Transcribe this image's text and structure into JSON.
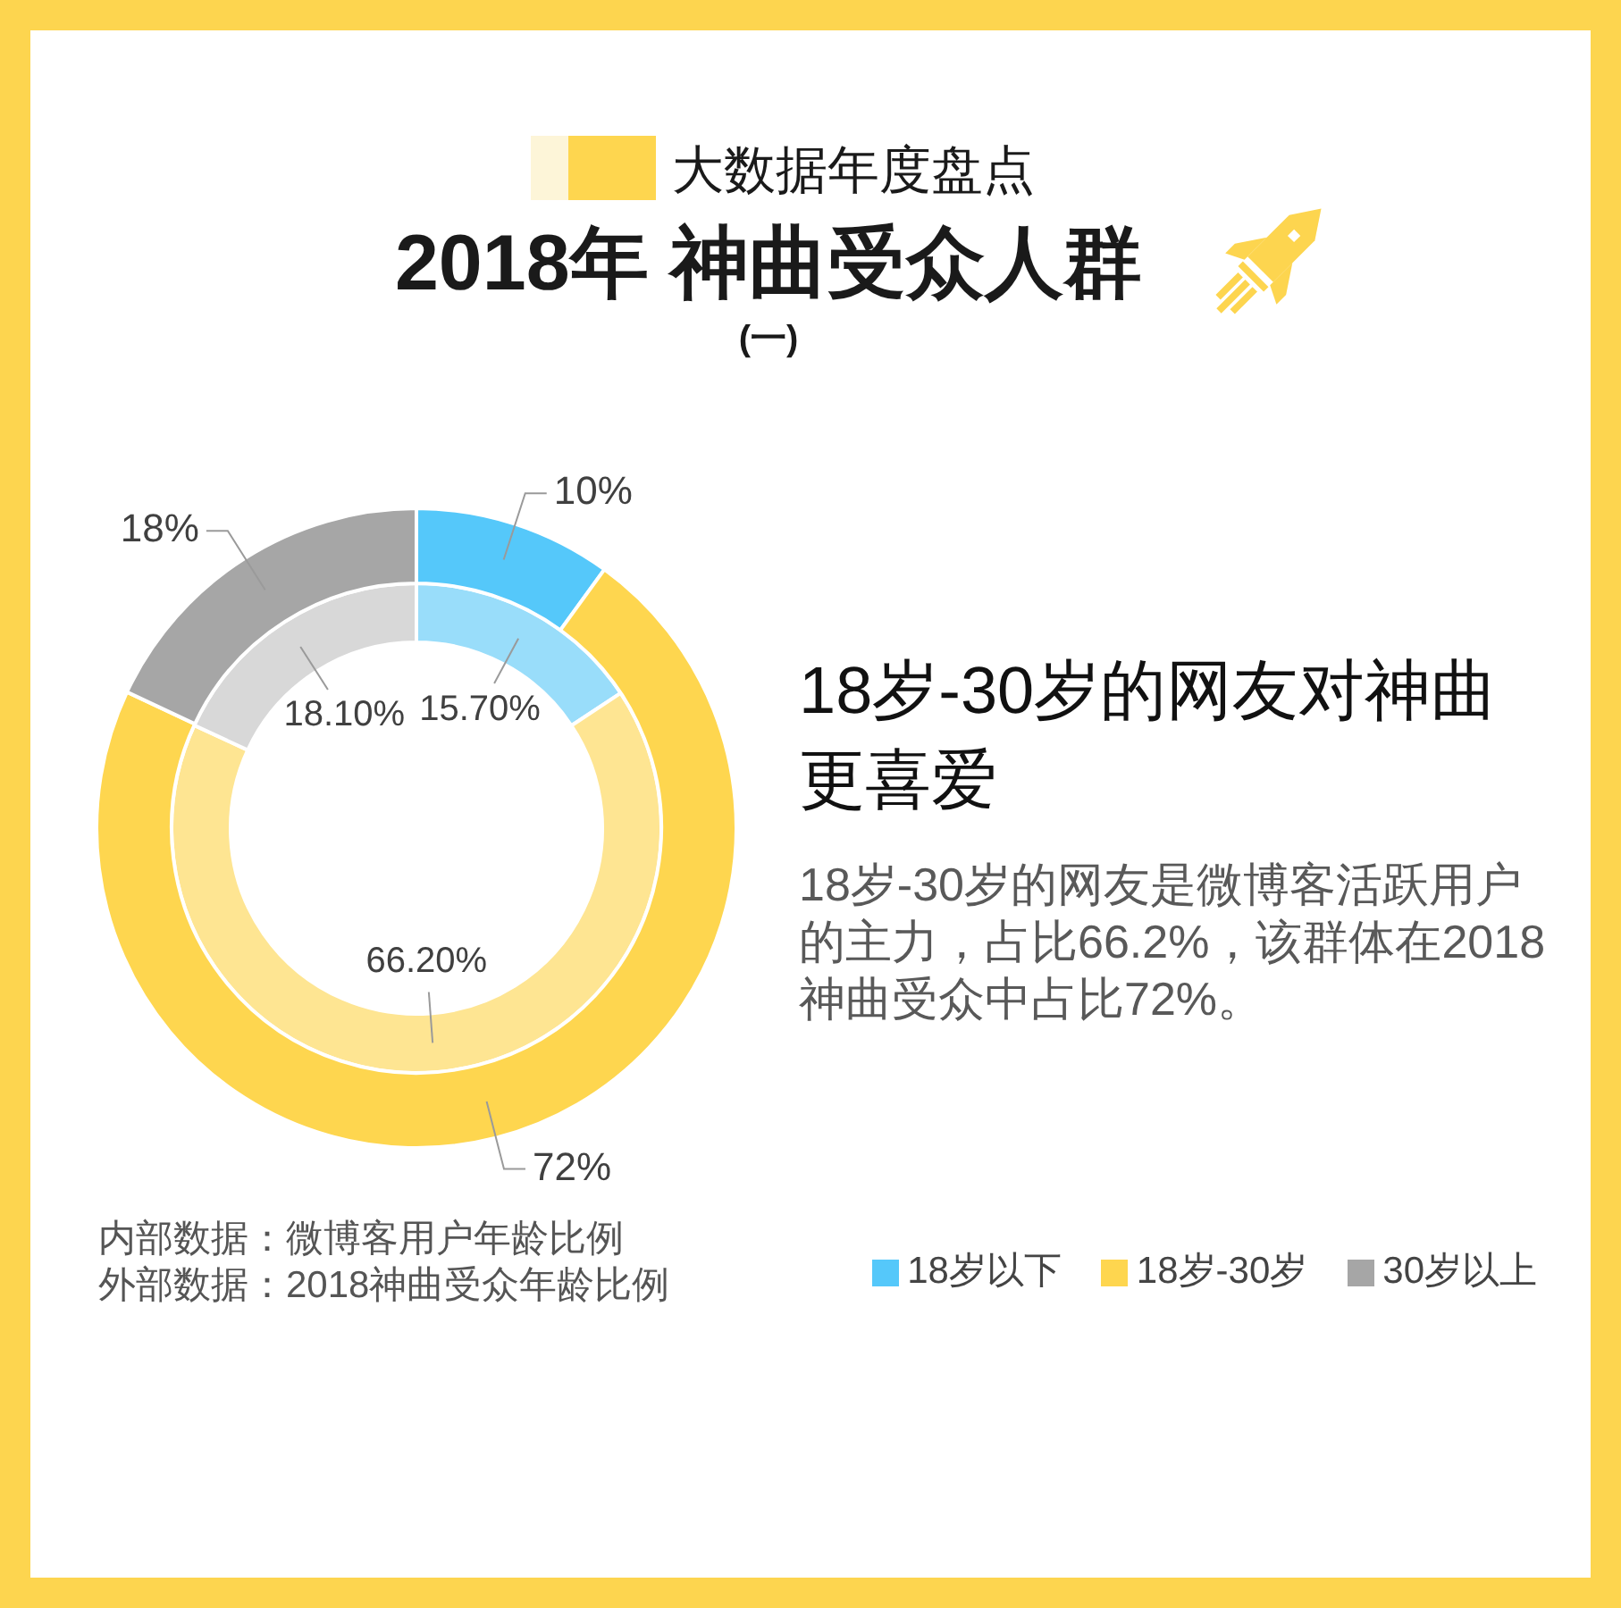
{
  "chart_data": {
    "type": "donut",
    "title": "2018年 神曲受众人群",
    "subtitle": "(一)",
    "annotations": [
      "大数据年度盘点",
      "18岁-30岁的网友对神曲更喜爱",
      "18岁-30岁的网友是微博客活跃用户的主力，占比66.2%，该群体在2018神曲受众中占比72%。",
      "内部数据：微博客用户年龄比例",
      "外部数据：2018神曲受众年龄比例"
    ],
    "categories": [
      "18岁以下",
      "18岁-30岁",
      "30岁以上"
    ],
    "series": [
      {
        "values": [
          10,
          72,
          18
        ],
        "colors": [
          "#55c8fa",
          "#fed64f",
          "#a6a6a6"
        ],
        "value_labels": [
          "10%",
          "72%",
          "18%"
        ]
      },
      {
        "values": [
          15.7,
          66.2,
          18.1
        ],
        "colors": [
          "#99ddfa",
          "#fee592",
          "#d8d8d8"
        ],
        "value_labels": [
          "15.70%",
          "66.20%",
          "18.10%"
        ]
      }
    ],
    "legend": "bottom right"
  }
}
